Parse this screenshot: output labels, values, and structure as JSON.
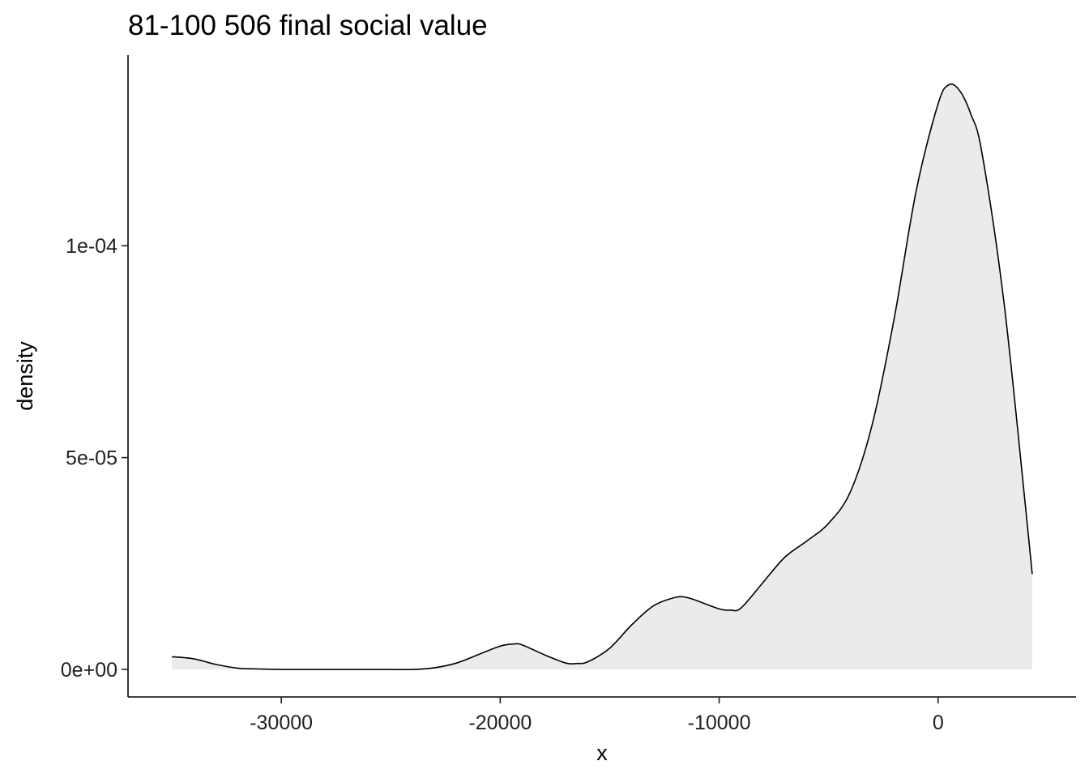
{
  "chart_data": {
    "type": "area",
    "title": "81-100 506 final social value",
    "xlabel": "x",
    "ylabel": "density",
    "xlim": [
      -37000,
      6300
    ],
    "ylim": [
      -6.5e-06,
      0.000145
    ],
    "x_ticks": [
      -30000,
      -20000,
      -10000,
      0
    ],
    "x_tick_labels": [
      "-30000",
      "-20000",
      "-10000",
      "0"
    ],
    "y_ticks": [
      0,
      5e-05,
      0.0001
    ],
    "y_tick_labels": [
      "0e+00",
      "5e-05",
      "1e-04"
    ],
    "grid": false,
    "legend": "none",
    "fill_color": "#ebebeb",
    "line_color": "#000000",
    "series": [
      {
        "x": [
          -35000,
          -34000,
          -33000,
          -32000,
          -31000,
          -30000,
          -28000,
          -26000,
          -24000,
          -23000,
          -22000,
          -21000,
          -20000,
          -19400,
          -19000,
          -18000,
          -17000,
          -16500,
          -16000,
          -15000,
          -14000,
          -13000,
          -12000,
          -11500,
          -11000,
          -10000,
          -9500,
          -9000,
          -8000,
          -7000,
          -6000,
          -5000,
          -4000,
          -3000,
          -2000,
          -1000,
          0,
          500,
          1000,
          1500,
          2000,
          3000,
          4000,
          4300
        ],
        "y": [
          3e-06,
          2.5e-06,
          1.2e-06,
          3e-07,
          1e-07,
          0,
          0,
          0,
          0,
          4e-07,
          1.5e-06,
          3.5e-06,
          5.5e-06,
          6e-06,
          5.8e-06,
          3.5e-06,
          1.5e-06,
          1.4e-06,
          1.8e-06,
          5e-06,
          1.05e-05,
          1.5e-05,
          1.7e-05,
          1.7e-05,
          1.62e-05,
          1.43e-05,
          1.4e-05,
          1.45e-05,
          2.05e-05,
          2.65e-05,
          3.03e-05,
          3.45e-05,
          4.2e-05,
          5.8e-05,
          8.3e-05,
          0.000113,
          0.0001335,
          0.000138,
          0.0001365,
          0.000131,
          0.000122,
          8.7e-05,
          3.8e-05,
          2.25e-05
        ]
      }
    ]
  }
}
